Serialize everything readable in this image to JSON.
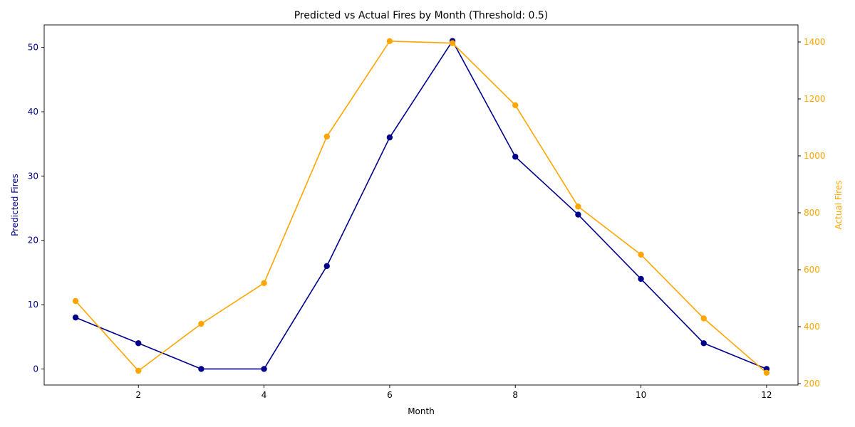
{
  "chart_data": {
    "type": "line",
    "title": "Predicted vs Actual Fires by Month (Threshold: 0.5)",
    "xlabel": "Month",
    "xlim": [
      0.5,
      12.5
    ],
    "xticks": [
      2,
      4,
      6,
      8,
      10,
      12
    ],
    "left_axis": {
      "label": "Predicted Fires",
      "color": "#00008b",
      "ylim": [
        -2.5,
        53.5
      ],
      "ticks": [
        0,
        10,
        20,
        30,
        40,
        50
      ]
    },
    "right_axis": {
      "label": "Actual Fires",
      "color": "#ffa500",
      "ylim": [
        195,
        1460
      ],
      "ticks": [
        200,
        400,
        600,
        800,
        1000,
        1200,
        1400
      ]
    },
    "x": [
      1,
      2,
      3,
      4,
      5,
      6,
      7,
      8,
      9,
      10,
      11,
      12
    ],
    "series": [
      {
        "axis": "left",
        "color": "#00008b",
        "values": [
          8,
          4,
          0,
          0,
          16,
          36,
          51,
          33,
          24,
          14,
          4,
          0
        ]
      },
      {
        "axis": "right",
        "color": "#ffa500",
        "values": [
          490,
          245,
          410,
          553,
          1068,
          1403,
          1396,
          1178,
          822,
          653,
          429,
          238
        ]
      }
    ],
    "grid": false,
    "legend": "none"
  }
}
